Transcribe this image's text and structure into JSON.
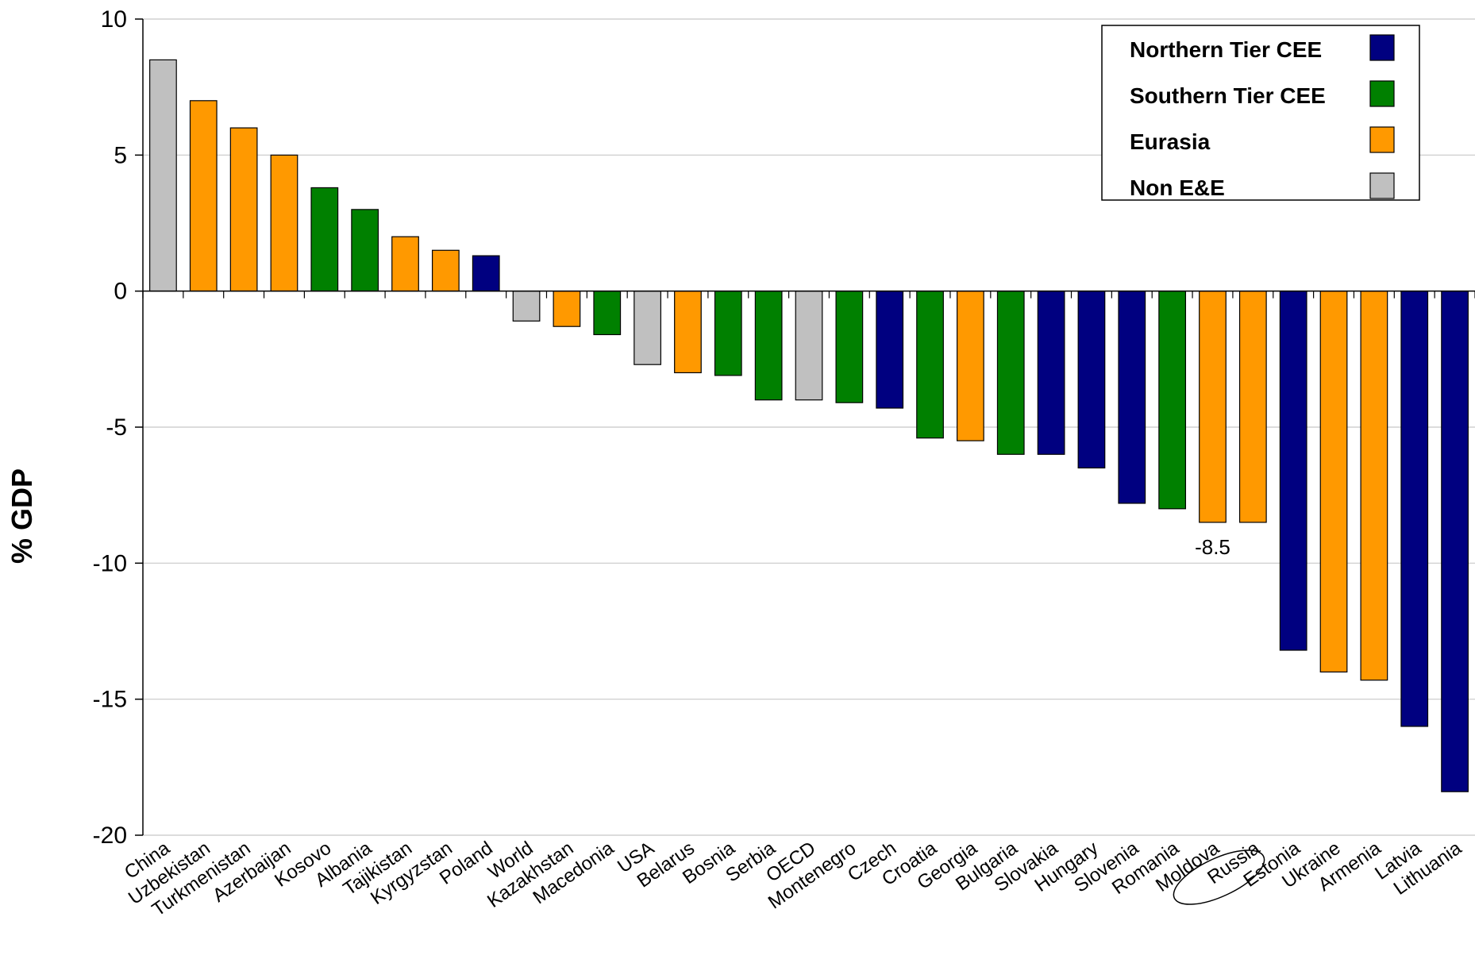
{
  "chart_data": {
    "type": "bar",
    "ylabel": "% GDP",
    "ylim": [
      -20,
      10
    ],
    "yticks": [
      10,
      5,
      0,
      -5,
      -10,
      -15,
      -20
    ],
    "grid": true,
    "legend_position": "top-right",
    "legend": [
      {
        "key": "northern",
        "label": "Northern Tier CEE",
        "color": "#000080"
      },
      {
        "key": "southern",
        "label": "Southern Tier CEE",
        "color": "#008000"
      },
      {
        "key": "eurasia",
        "label": "Eurasia",
        "color": "#FF9900"
      },
      {
        "key": "non",
        "label": "Non E&E",
        "color": "#C0C0C0"
      }
    ],
    "categories": [
      "China",
      "Uzbekistan",
      "Turkmenistan",
      "Azerbaijan",
      "Kosovo",
      "Albania",
      "Tajikistan",
      "Kyrgyzstan",
      "Poland",
      "World",
      "Kazakhstan",
      "Macedonia",
      "USA",
      "Belarus",
      "Bosnia",
      "Serbia",
      "OECD",
      "Montenegro",
      "Czech",
      "Croatia",
      "Georgia",
      "Bulgaria",
      "Slovakia",
      "Hungary",
      "Slovenia",
      "Romania",
      "Moldova",
      "Russia",
      "Estonia",
      "Ukraine",
      "Armenia",
      "Latvia",
      "Lithuania"
    ],
    "values": [
      8.5,
      7.0,
      6.0,
      5.0,
      3.8,
      3.0,
      2.0,
      1.5,
      1.3,
      -1.1,
      -1.3,
      -1.6,
      -2.7,
      -3.0,
      -3.1,
      -4.0,
      -4.0,
      -4.1,
      -4.3,
      -5.4,
      -5.5,
      -6.0,
      -6.0,
      -6.5,
      -7.8,
      -8.0,
      -8.5,
      -8.5,
      -13.2,
      -14.0,
      -14.3,
      -16.0,
      -18.4
    ],
    "groups": [
      "non",
      "eurasia",
      "eurasia",
      "eurasia",
      "southern",
      "southern",
      "eurasia",
      "eurasia",
      "northern",
      "non",
      "eurasia",
      "southern",
      "non",
      "eurasia",
      "southern",
      "southern",
      "non",
      "southern",
      "northern",
      "southern",
      "eurasia",
      "southern",
      "northern",
      "northern",
      "northern",
      "southern",
      "eurasia",
      "eurasia",
      "northern",
      "eurasia",
      "eurasia",
      "northern",
      "northern"
    ],
    "annotations": [
      {
        "category": "Moldova",
        "text": "-8.5",
        "highlight": "circle"
      }
    ]
  }
}
